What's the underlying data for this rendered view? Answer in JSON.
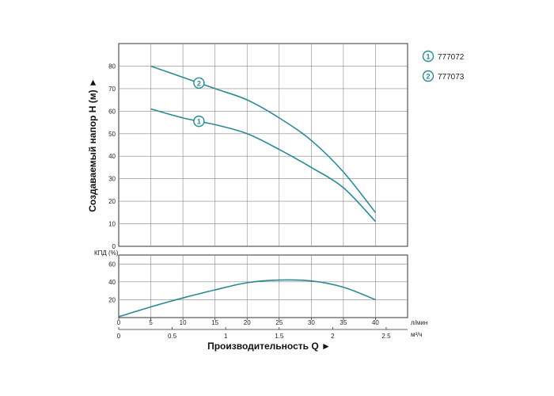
{
  "chart_data": [
    {
      "type": "line",
      "title": "",
      "ylabel": "Создаваемый напор H (м) ►",
      "xlim": [
        0,
        45
      ],
      "ylim": [
        0,
        90
      ],
      "yticks": [
        0,
        10,
        20,
        30,
        40,
        50,
        60,
        70,
        80
      ],
      "grid": true,
      "legend_position": "top-right",
      "series": [
        {
          "name": "777072",
          "marker": "1",
          "x": [
            5,
            10,
            15,
            20,
            25,
            30,
            35,
            40
          ],
          "y": [
            61,
            57,
            54,
            50,
            43,
            35,
            26,
            11
          ]
        },
        {
          "name": "777073",
          "marker": "2",
          "x": [
            5,
            10,
            15,
            20,
            25,
            30,
            35,
            40
          ],
          "y": [
            80,
            75,
            70,
            65,
            57,
            47,
            33,
            15
          ]
        }
      ]
    },
    {
      "type": "line",
      "ylabel": "КПД (%)",
      "ylim": [
        0,
        70
      ],
      "yticks": [
        20,
        40,
        60
      ],
      "grid": true,
      "series": [
        {
          "x": [
            0,
            5,
            10,
            15,
            20,
            25,
            30,
            35,
            40
          ],
          "y": [
            1,
            12,
            22,
            31,
            39,
            42,
            41,
            34,
            20
          ]
        }
      ]
    }
  ],
  "x_axis_primary": {
    "ticks": [
      "0",
      "5",
      "10",
      "15",
      "20",
      "25",
      "30",
      "35",
      "40"
    ],
    "unit": "л/мин"
  },
  "x_axis_secondary": {
    "ticks": [
      "0",
      "0.5",
      "1",
      "1.5",
      "2",
      "2.5"
    ],
    "unit": "м³/ч"
  },
  "x_axis_title": "Производительность Q ►",
  "legend": [
    {
      "marker": "1",
      "label": "777072"
    },
    {
      "marker": "2",
      "label": "777073"
    }
  ],
  "colors": {
    "curve": "#2a8a94",
    "grid": "#888888",
    "frame": "#333333"
  }
}
